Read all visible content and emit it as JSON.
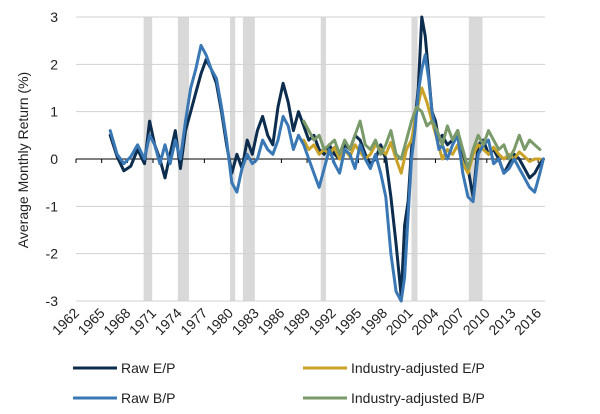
{
  "chart_data": {
    "type": "line",
    "title": "",
    "ylabel": "Average Monthly Return (%)",
    "xlabel": "",
    "xlim": [
      1962,
      2016.8
    ],
    "ylim": [
      -3,
      3
    ],
    "yticks": [
      -3,
      -2,
      -1,
      0,
      1,
      2,
      3
    ],
    "xtick_labels": [
      "1962",
      "1965",
      "1968",
      "1971",
      "1974",
      "1977",
      "1980",
      "1983",
      "1986",
      "1989",
      "1992",
      "1995",
      "1998",
      "2001",
      "2004",
      "2007",
      "2010",
      "2013",
      "2016"
    ],
    "grid": true,
    "legend_position": "bottom",
    "recession_bands": [
      [
        1969.9,
        1970.9
      ],
      [
        1973.9,
        1975.2
      ],
      [
        1980.0,
        1980.6
      ],
      [
        1981.5,
        1982.9
      ],
      [
        1990.6,
        1991.2
      ],
      [
        2001.2,
        2001.9
      ],
      [
        2007.9,
        2009.5
      ]
    ],
    "recession_color": "#d9d9d9",
    "series": [
      {
        "name": "Raw E/P",
        "color": "#0c2d4e",
        "x": [
          1966.0,
          1966.8,
          1967.6,
          1968.4,
          1969.2,
          1970.0,
          1970.6,
          1971.2,
          1971.8,
          1972.4,
          1973.0,
          1973.6,
          1974.2,
          1974.8,
          1975.4,
          1976.0,
          1976.6,
          1977.2,
          1977.8,
          1978.4,
          1979.0,
          1979.6,
          1980.2,
          1980.8,
          1981.4,
          1982.0,
          1982.6,
          1983.2,
          1983.8,
          1984.4,
          1985.0,
          1985.6,
          1986.2,
          1986.8,
          1987.4,
          1988.0,
          1988.6,
          1989.2,
          1989.8,
          1990.4,
          1991.0,
          1991.6,
          1992.2,
          1992.8,
          1993.4,
          1994.0,
          1994.6,
          1995.2,
          1995.8,
          1996.4,
          1997.0,
          1997.6,
          1998.2,
          1998.8,
          1999.4,
          2000.0,
          2000.4,
          2000.8,
          2001.2,
          2001.6,
          2002.0,
          2002.4,
          2002.8,
          2003.2,
          2003.6,
          2004.0,
          2004.4,
          2004.8,
          2005.4,
          2006.0,
          2006.6,
          2007.2,
          2007.8,
          2008.4,
          2009.0,
          2009.6,
          2010.2,
          2010.8,
          2011.4,
          2012.0,
          2012.6,
          2013.2,
          2013.8,
          2014.4,
          2015.0,
          2015.6,
          2016.2,
          2016.6
        ],
        "y": [
          0.5,
          0.05,
          -0.25,
          -0.15,
          0.2,
          -0.1,
          0.8,
          0.3,
          0.0,
          -0.4,
          0.1,
          0.6,
          -0.2,
          0.6,
          1.0,
          1.4,
          1.8,
          2.1,
          1.9,
          1.6,
          1.0,
          0.3,
          -0.3,
          0.1,
          -0.2,
          0.4,
          0.1,
          0.6,
          0.9,
          0.5,
          0.3,
          1.1,
          1.6,
          1.2,
          0.6,
          1.0,
          0.7,
          0.4,
          0.5,
          0.2,
          0.1,
          0.3,
          0.1,
          0.0,
          0.3,
          0.2,
          0.5,
          0.4,
          0.1,
          -0.1,
          0.0,
          0.3,
          0.0,
          -0.8,
          -1.8,
          -2.9,
          -1.4,
          -0.9,
          0.2,
          0.8,
          1.5,
          3.0,
          2.6,
          1.8,
          1.0,
          0.8,
          0.4,
          0.5,
          0.3,
          0.4,
          0.6,
          0.1,
          -0.2,
          -0.8,
          0.3,
          0.4,
          0.1,
          0.2,
          0.0,
          -0.3,
          -0.1,
          0.1,
          0.0,
          -0.2,
          -0.4,
          -0.3,
          -0.1,
          0.0
        ]
      },
      {
        "name": "Industry-adjusted E/P",
        "color": "#c9a227",
        "x": [
          1988.6,
          1989.2,
          1989.8,
          1990.4,
          1991.0,
          1991.6,
          1992.2,
          1992.8,
          1993.4,
          1994.0,
          1994.6,
          1995.2,
          1995.8,
          1996.4,
          1997.0,
          1997.6,
          1998.2,
          1998.8,
          1999.4,
          2000.0,
          2000.6,
          2001.2,
          2001.8,
          2002.4,
          2003.0,
          2003.6,
          2004.2,
          2004.8,
          2005.4,
          2006.0,
          2006.6,
          2007.2,
          2007.8,
          2008.4,
          2009.0,
          2009.6,
          2010.2,
          2010.8,
          2011.4,
          2012.0,
          2012.6,
          2013.2,
          2013.8,
          2014.4,
          2015.0,
          2015.6,
          2016.2
        ],
        "y": [
          0.4,
          0.2,
          0.3,
          0.1,
          0.2,
          0.1,
          0.25,
          0.0,
          0.2,
          0.05,
          0.3,
          0.15,
          0.0,
          0.1,
          0.3,
          0.2,
          0.1,
          0.35,
          0.0,
          -0.3,
          0.2,
          0.4,
          1.0,
          1.5,
          1.2,
          0.8,
          0.4,
          0.0,
          0.2,
          0.1,
          0.3,
          -0.1,
          -0.3,
          0.1,
          0.3,
          0.2,
          0.1,
          0.25,
          0.1,
          0.0,
          0.1,
          0.0,
          0.15,
          0.05,
          -0.05,
          0.0,
          0.0
        ]
      },
      {
        "name": "Raw B/P",
        "color": "#3a78b5",
        "x": [
          1966.0,
          1966.8,
          1967.6,
          1968.4,
          1969.2,
          1970.0,
          1970.6,
          1971.2,
          1971.8,
          1972.4,
          1973.0,
          1973.6,
          1974.2,
          1974.8,
          1975.4,
          1976.0,
          1976.6,
          1977.2,
          1977.8,
          1978.4,
          1979.0,
          1979.6,
          1980.2,
          1980.8,
          1981.4,
          1982.0,
          1982.6,
          1983.2,
          1983.8,
          1984.4,
          1985.0,
          1985.6,
          1986.2,
          1986.8,
          1987.4,
          1988.0,
          1988.6,
          1989.2,
          1989.8,
          1990.4,
          1991.0,
          1991.6,
          1992.2,
          1992.8,
          1993.4,
          1994.0,
          1994.6,
          1995.2,
          1995.8,
          1996.4,
          1997.0,
          1997.6,
          1998.2,
          1998.8,
          1999.4,
          2000.0,
          2000.4,
          2000.8,
          2001.2,
          2001.6,
          2002.0,
          2002.4,
          2002.8,
          2003.2,
          2003.6,
          2004.0,
          2004.4,
          2004.8,
          2005.4,
          2006.0,
          2006.6,
          2007.2,
          2007.8,
          2008.4,
          2009.0,
          2009.6,
          2010.2,
          2010.8,
          2011.4,
          2012.0,
          2012.6,
          2013.2,
          2013.8,
          2014.4,
          2015.0,
          2015.6,
          2016.2,
          2016.6
        ],
        "y": [
          0.6,
          0.1,
          -0.1,
          0.05,
          0.3,
          0.0,
          0.5,
          0.3,
          -0.1,
          0.3,
          -0.1,
          0.4,
          0.0,
          0.8,
          1.5,
          1.9,
          2.4,
          2.2,
          1.9,
          1.7,
          1.1,
          0.4,
          -0.5,
          -0.7,
          -0.2,
          0.1,
          -0.1,
          0.0,
          0.4,
          0.2,
          0.1,
          0.4,
          0.9,
          0.7,
          0.2,
          0.5,
          0.3,
          0.0,
          -0.3,
          -0.6,
          -0.2,
          0.2,
          -0.1,
          -0.3,
          0.2,
          0.1,
          -0.2,
          0.3,
          0.0,
          -0.2,
          0.1,
          -0.3,
          -0.8,
          -2.0,
          -2.8,
          -3.0,
          -2.5,
          -1.2,
          0.0,
          0.6,
          1.4,
          1.9,
          2.2,
          1.7,
          1.0,
          0.6,
          0.2,
          0.3,
          0.0,
          0.3,
          0.5,
          -0.3,
          -0.8,
          -0.9,
          0.1,
          0.3,
          0.4,
          -0.1,
          0.0,
          -0.3,
          -0.2,
          0.0,
          -0.2,
          -0.4,
          -0.6,
          -0.7,
          -0.3,
          0.0
        ]
      },
      {
        "name": "Industry-adjusted B/P",
        "color": "#7a9a6a",
        "x": [
          1988.6,
          1989.2,
          1989.8,
          1990.4,
          1991.0,
          1991.6,
          1992.2,
          1992.8,
          1993.4,
          1994.0,
          1994.6,
          1995.2,
          1995.8,
          1996.4,
          1997.0,
          1997.6,
          1998.2,
          1998.8,
          1999.4,
          2000.0,
          2000.6,
          2001.2,
          2001.8,
          2002.4,
          2003.0,
          2003.6,
          2004.2,
          2004.8,
          2005.4,
          2006.0,
          2006.6,
          2007.2,
          2007.8,
          2008.4,
          2009.0,
          2009.6,
          2010.2,
          2010.8,
          2011.4,
          2012.0,
          2012.6,
          2013.2,
          2013.8,
          2014.4,
          2015.0,
          2015.6,
          2016.2
        ],
        "y": [
          0.8,
          0.6,
          0.4,
          0.5,
          0.2,
          0.3,
          0.4,
          0.1,
          0.4,
          0.2,
          0.5,
          0.8,
          0.3,
          0.2,
          0.4,
          0.1,
          0.3,
          0.6,
          0.1,
          0.0,
          0.4,
          0.8,
          1.1,
          1.0,
          0.7,
          0.8,
          0.6,
          0.3,
          0.7,
          0.4,
          0.6,
          0.2,
          -0.2,
          0.2,
          0.5,
          0.3,
          0.6,
          0.4,
          0.2,
          0.3,
          0.0,
          0.2,
          0.5,
          0.2,
          0.4,
          0.3,
          0.2
        ]
      }
    ]
  }
}
